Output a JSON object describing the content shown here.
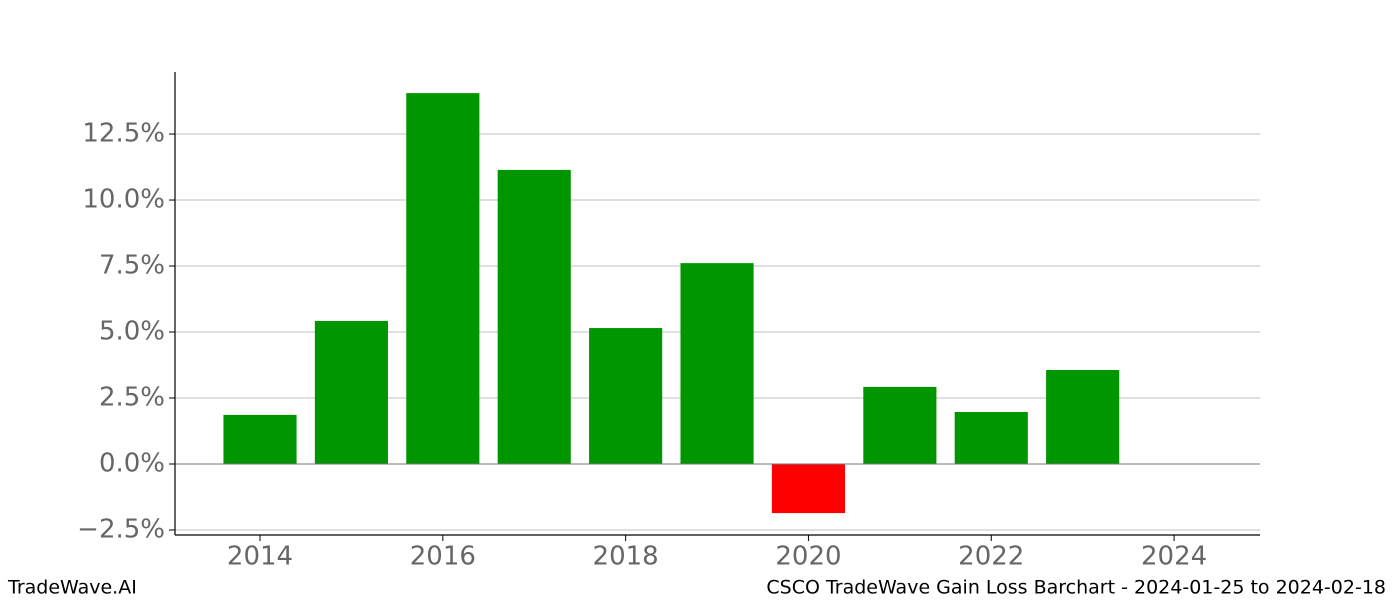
{
  "chart_data": {
    "type": "bar",
    "title": "CSCO TradeWave Gain Loss Barchart - 2024-01-25 to 2024-02-18",
    "brand": "TradeWave.AI",
    "x": [
      2014,
      2015,
      2016,
      2017,
      2018,
      2019,
      2020,
      2021,
      2022,
      2023
    ],
    "values": [
      1.86,
      5.42,
      14.05,
      11.14,
      5.15,
      7.61,
      -1.86,
      2.92,
      1.97,
      3.56
    ],
    "color": "#009600",
    "negative_color": "#ff0000",
    "xlim": [
      2013.07,
      2024.94
    ],
    "xticks": [
      2014,
      2016,
      2018,
      2020,
      2022,
      2024
    ],
    "ylim": [
      -2.69,
      14.85
    ],
    "yticks": [
      {
        "value": -2.5,
        "label": "−2.5%"
      },
      {
        "value": 0,
        "label": "0.0%"
      },
      {
        "value": 2.5,
        "label": "2.5%"
      },
      {
        "value": 5,
        "label": "5.0%"
      },
      {
        "value": 7.5,
        "label": "7.5%"
      },
      {
        "value": 10,
        "label": "10.0%"
      },
      {
        "value": 12.5,
        "label": "12.5%"
      }
    ],
    "grid": true
  }
}
